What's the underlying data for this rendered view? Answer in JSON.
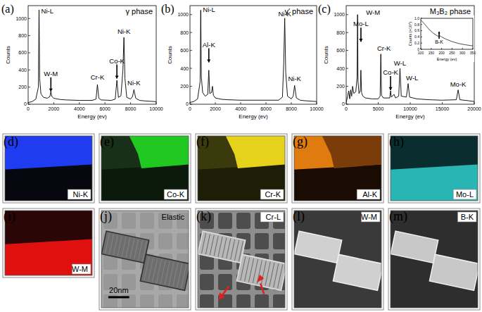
{
  "chart_data": [
    {
      "type": "line",
      "panel_label": "(a)",
      "title": "γ phase",
      "x_label": "Energy (ev)",
      "y_label": "Counts",
      "color": "#000000",
      "x": [
        0,
        300,
        600,
        800,
        850,
        900,
        1000,
        1200,
        1500,
        1700,
        1775,
        1850,
        2000,
        2500,
        3000,
        4000,
        5000,
        5300,
        5410,
        5520,
        5700,
        6500,
        6800,
        6930,
        7050,
        7250,
        7400,
        7480,
        7560,
        7700,
        8000,
        8150,
        8260,
        8400,
        8700,
        9000,
        10000
      ],
      "values": [
        20,
        30,
        60,
        200,
        1100,
        300,
        120,
        80,
        70,
        90,
        150,
        90,
        70,
        55,
        50,
        45,
        45,
        60,
        230,
        70,
        50,
        45,
        60,
        280,
        80,
        100,
        400,
        780,
        300,
        80,
        60,
        90,
        170,
        70,
        45,
        40,
        30
      ],
      "xlim": [
        0,
        10000
      ],
      "xticks": [
        0,
        2000,
        4000,
        6000,
        8000,
        10000
      ],
      "ylim": [
        0,
        1150
      ],
      "yticks": [
        0,
        200,
        400,
        600,
        800,
        1000
      ],
      "annotations": [
        {
          "text": "Ni-L",
          "x": 1500,
          "y": 1060
        },
        {
          "text": "W-M",
          "x": 1775,
          "y": 330,
          "arrow": "down"
        },
        {
          "text": "Cr-K",
          "x": 5410,
          "y": 290
        },
        {
          "text": "Co-K",
          "x": 6930,
          "y": 480,
          "arrow": "down"
        },
        {
          "text": "Ni-K",
          "x": 7480,
          "y": 820
        },
        {
          "text": "Ni-K",
          "x": 8260,
          "y": 220
        }
      ]
    },
    {
      "type": "line",
      "panel_label": "(b)",
      "title": "γ′ phase",
      "x_label": "Energy (ev)",
      "y_label": "Counts",
      "color": "#000000",
      "x": [
        0,
        300,
        600,
        800,
        850,
        900,
        1000,
        1200,
        1400,
        1487,
        1560,
        1700,
        1775,
        1850,
        2000,
        2500,
        3000,
        4000,
        5000,
        6000,
        7000,
        7300,
        7400,
        7480,
        7560,
        7700,
        8000,
        8150,
        8260,
        8400,
        8700,
        9000,
        10000
      ],
      "values": [
        20,
        30,
        60,
        250,
        1050,
        300,
        130,
        90,
        110,
        380,
        120,
        130,
        200,
        100,
        70,
        55,
        50,
        45,
        45,
        45,
        45,
        80,
        450,
        960,
        350,
        90,
        60,
        90,
        210,
        70,
        45,
        40,
        30
      ],
      "xlim": [
        0,
        10000
      ],
      "xticks": [
        0,
        2000,
        4000,
        6000,
        8000,
        10000
      ],
      "ylim": [
        0,
        1100
      ],
      "yticks": [
        0,
        200,
        400,
        600,
        800,
        1000
      ],
      "annotations": [
        {
          "text": "Ni-L",
          "x": 1500,
          "y": 1030
        },
        {
          "text": "Al-K",
          "x": 1487,
          "y": 640,
          "arrow": "down"
        },
        {
          "text": "Ni-K",
          "x": 7480,
          "y": 980
        },
        {
          "text": "Ni-K",
          "x": 8260,
          "y": 260
        }
      ]
    },
    {
      "type": "line",
      "panel_label": "(c)",
      "title": "M₃B₂ phase",
      "x_label": "Energy (ev)",
      "y_label": "Counts",
      "color": "#000000",
      "x": [
        0,
        200,
        400,
        550,
        700,
        850,
        1000,
        1200,
        1500,
        1700,
        1775,
        1850,
        2000,
        2200,
        2293,
        2400,
        2600,
        3000,
        4000,
        5000,
        5300,
        5410,
        5520,
        5800,
        6800,
        6930,
        7050,
        7480,
        7700,
        8200,
        8400,
        8600,
        9400,
        9670,
        9900,
        11000,
        13000,
        15000,
        17200,
        17480,
        17750,
        19000,
        20000
      ],
      "values": [
        20,
        80,
        150,
        60,
        160,
        90,
        200,
        120,
        140,
        300,
        1000,
        250,
        120,
        150,
        380,
        130,
        90,
        70,
        60,
        60,
        90,
        560,
        100,
        70,
        70,
        150,
        80,
        110,
        70,
        90,
        400,
        90,
        80,
        230,
        80,
        60,
        50,
        45,
        50,
        160,
        50,
        40,
        30
      ],
      "xlim": [
        0,
        20000
      ],
      "xticks": [
        0,
        5000,
        10000,
        15000,
        20000
      ],
      "ylim": [
        0,
        1100
      ],
      "yticks": [
        0,
        200,
        400,
        600,
        800,
        1000
      ],
      "annotations": [
        {
          "text": "W-M",
          "x": 4200,
          "y": 1000
        },
        {
          "text": "Mo-L",
          "x": 2300,
          "y": 870,
          "arrow": "down"
        },
        {
          "text": "Cr-K",
          "x": 5900,
          "y": 600
        },
        {
          "text": "Co-K",
          "x": 6930,
          "y": 330,
          "arrow": "down"
        },
        {
          "text": "W-L",
          "x": 8400,
          "y": 430
        },
        {
          "text": "W-L",
          "x": 10300,
          "y": 270
        },
        {
          "text": "Mo-K",
          "x": 17480,
          "y": 200
        }
      ],
      "inset": {
        "type": "line",
        "x_label": "Energy (ev)",
        "y_label": "Counts (×10⁴)",
        "color": "#000000",
        "x": [
          100,
          120,
          140,
          160,
          175,
          185,
          190,
          200,
          220,
          250,
          280,
          310,
          350
        ],
        "values": [
          0.95,
          0.8,
          0.64,
          0.52,
          0.45,
          0.42,
          0.44,
          0.4,
          0.33,
          0.25,
          0.19,
          0.15,
          0.11
        ],
        "xlim": [
          100,
          350
        ],
        "xticks": [
          100,
          150,
          200,
          250,
          300,
          350
        ],
        "ylim": [
          0,
          1
        ],
        "yticks": [
          0,
          0.2,
          0.4,
          0.6,
          0.8,
          {
            "value": 1,
            "label": "1.0"
          }
        ],
        "annotations": [
          {
            "text": "B-K",
            "x": 188,
            "y": 0.18,
            "arrow": "up"
          }
        ]
      }
    }
  ],
  "image_panels": [
    {
      "panel_label": "(d)",
      "caption": "Ni-K",
      "color": "#1f3cf0"
    },
    {
      "panel_label": "(e)",
      "caption": "Co-K",
      "color": "#22c822"
    },
    {
      "panel_label": "(f)",
      "caption": "Cr-K",
      "color": "#e6d21a"
    },
    {
      "panel_label": "(g)",
      "caption": "Al-K",
      "color": "#e07b10"
    },
    {
      "panel_label": "(h)",
      "caption": "Mo-L",
      "color": "#2ab5b5"
    },
    {
      "panel_label": "(i)",
      "caption": "W-M",
      "color": "#e01010"
    },
    {
      "panel_label": "(j)",
      "caption": "Elastic",
      "color": "#a8a8a8",
      "scale_bar": "20nm"
    },
    {
      "panel_label": "(k)",
      "caption": "Cr-L",
      "color": "#8e8e8e"
    },
    {
      "panel_label": "(l)",
      "caption": "W-M",
      "color": "#d0d0d0"
    },
    {
      "panel_label": "(m)",
      "caption": "B-K",
      "color": "#c8c8c8"
    }
  ]
}
